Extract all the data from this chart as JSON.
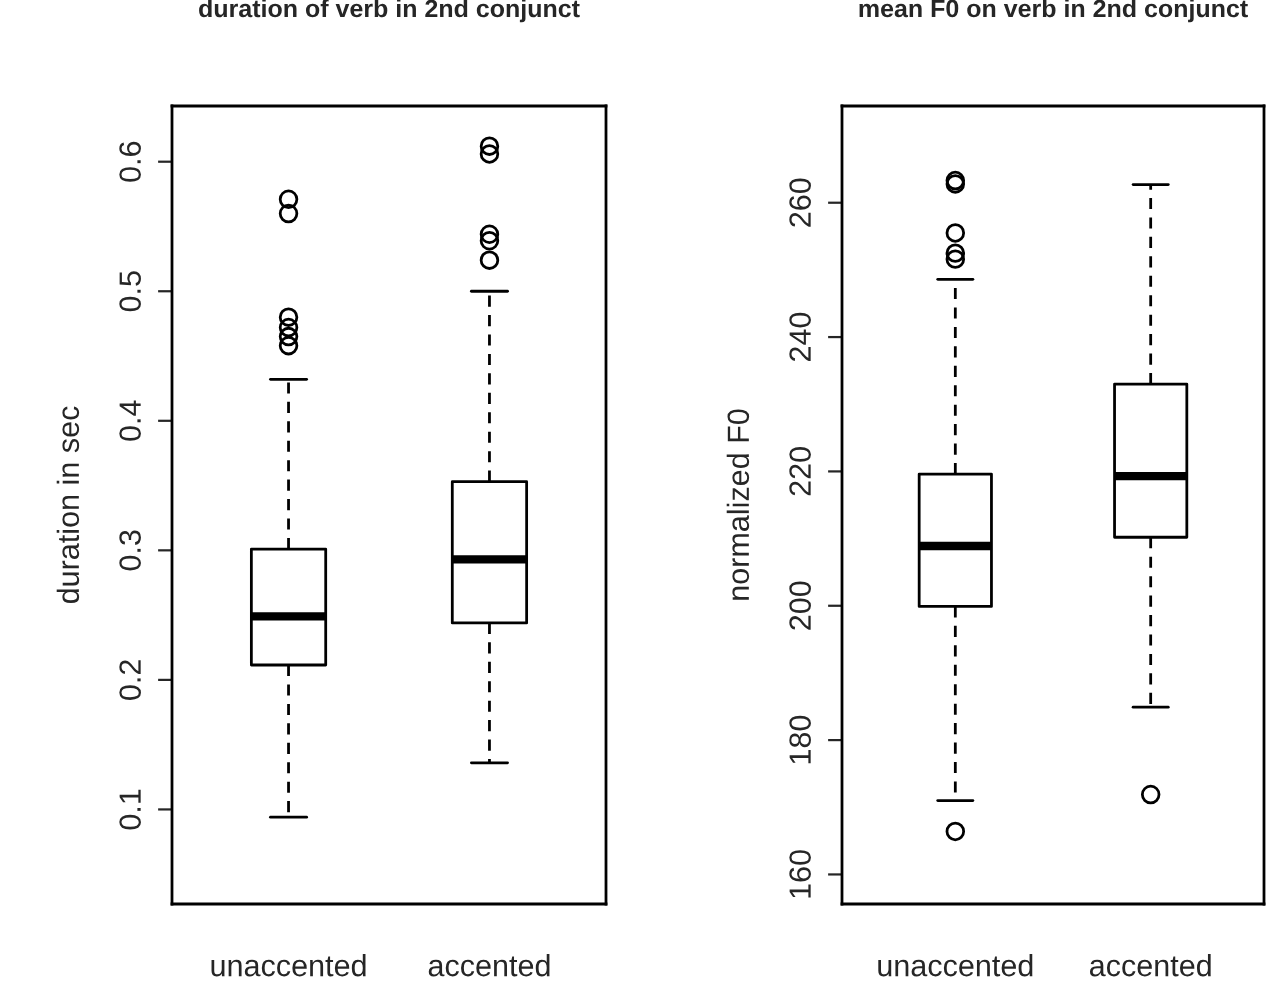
{
  "chart_data": [
    {
      "type": "box",
      "title": "duration of verb in 2nd conjunct",
      "ylabel": "duration in sec",
      "categories": [
        "unaccented",
        "accented"
      ],
      "ylim": [
        0.027,
        0.643
      ],
      "yticks": [
        0.1,
        0.2,
        0.3,
        0.4,
        0.5,
        0.6
      ],
      "grid": false,
      "legend": false,
      "boxes": [
        {
          "low": 0.094,
          "q1": 0.2115,
          "median": 0.249,
          "q3": 0.301,
          "high": 0.432,
          "outliers": [
            0.458,
            0.465,
            0.472,
            0.48,
            0.56,
            0.571
          ]
        },
        {
          "low": 0.136,
          "q1": 0.244,
          "median": 0.293,
          "q3": 0.353,
          "high": 0.5,
          "outliers": [
            0.524,
            0.539,
            0.544,
            0.606,
            0.612
          ]
        }
      ]
    },
    {
      "type": "box",
      "title": "mean F0 on verb in 2nd conjunct",
      "ylabel": "normalized F0",
      "categories": [
        "unaccented",
        "accented"
      ],
      "ylim": [
        155.6,
        274.4
      ],
      "yticks": [
        160,
        180,
        200,
        220,
        240,
        260
      ],
      "grid": false,
      "legend": false,
      "boxes": [
        {
          "low": 171,
          "q1": 199.9,
          "median": 208.9,
          "q3": 219.6,
          "high": 248.6,
          "outliers": [
            166.4,
            251.6,
            252.5,
            255.5,
            262.8,
            263.3
          ]
        },
        {
          "low": 184.9,
          "q1": 210.2,
          "median": 219.3,
          "q3": 233,
          "high": 262.7,
          "outliers": [
            171.9
          ]
        }
      ]
    }
  ]
}
